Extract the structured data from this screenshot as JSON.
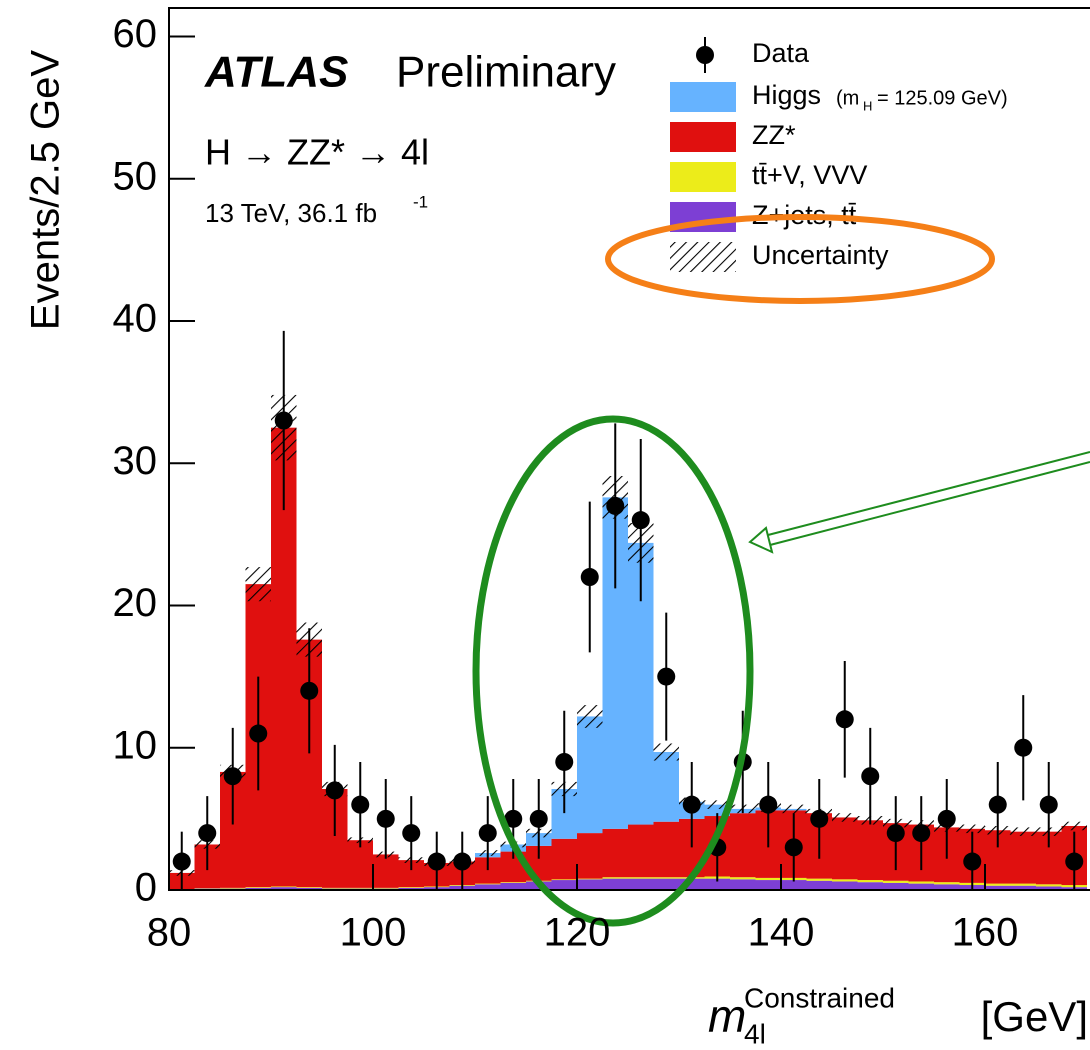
{
  "chart_data": {
    "type": "histogram",
    "experiment": "ATLAS",
    "status": "Preliminary",
    "process": "H → ZZ* → 4l",
    "energy_lumi": {
      "text": "13 TeV, 36.1 fb",
      "sup": "-1"
    },
    "y_label": "Events/2.5 GeV",
    "x_label": {
      "symbol": "m",
      "sub": "4l",
      "sup": "Constrained",
      "unit": "[GeV]"
    },
    "bins": [
      80,
      82.5,
      85,
      87.5,
      90,
      92.5,
      95,
      97.5,
      100,
      102.5,
      105,
      107.5,
      110,
      112.5,
      115,
      117.5,
      120,
      122.5,
      125,
      127.5,
      130,
      132.5,
      135,
      137.5,
      140,
      142.5,
      145,
      147.5,
      150,
      152.5,
      155,
      157.5,
      160,
      162.5,
      165,
      167.5,
      170
    ],
    "xlim": [
      80,
      170
    ],
    "ylim": [
      0,
      62
    ],
    "xticks": [
      80,
      100,
      120,
      140,
      160
    ],
    "yticks": [
      0,
      10,
      20,
      30,
      40,
      50,
      60
    ],
    "data": {
      "name": "Data",
      "color": "#000000",
      "values": [
        2,
        4,
        8,
        11,
        33,
        14,
        7,
        6,
        5,
        4,
        2,
        2,
        4,
        5,
        5,
        9,
        22,
        27,
        26,
        15,
        6,
        3,
        9,
        6,
        3,
        5,
        12,
        8,
        4,
        4,
        5,
        2,
        6,
        10,
        6,
        2
      ],
      "errors": [
        2.1,
        2.6,
        3.4,
        4.0,
        6.3,
        4.4,
        3.2,
        3.0,
        2.8,
        2.6,
        2.1,
        2.1,
        2.6,
        2.8,
        2.8,
        3.6,
        5.3,
        5.8,
        5.7,
        4.5,
        3.0,
        2.4,
        3.6,
        3.0,
        2.4,
        2.8,
        4.1,
        3.4,
        2.6,
        2.6,
        2.8,
        2.1,
        3.0,
        3.7,
        3.0,
        2.1
      ]
    },
    "series": [
      {
        "name": "Higgs",
        "color": "#66b3ff",
        "legend_note": {
          "open": "(m",
          "sub": "H",
          "rest": "= 125.09 GeV)"
        },
        "values": [
          0,
          0,
          0,
          0,
          0,
          0,
          0,
          0,
          0,
          0,
          0,
          0,
          0.3,
          0.5,
          0.9,
          3.5,
          8.2,
          23.3,
          19.8,
          4.9,
          1.2,
          0.8,
          0.3,
          0.2,
          0.1,
          0,
          0,
          0,
          0,
          0,
          0,
          0,
          0,
          0,
          0,
          0
        ]
      },
      {
        "name": "ZZ*",
        "color": "#e0100f",
        "values": [
          1.13,
          3.07,
          8.15,
          21.3,
          32.25,
          17.4,
          6.95,
          3.35,
          2.35,
          1.9,
          1.65,
          1.65,
          1.85,
          2.15,
          2.45,
          2.85,
          3.2,
          3.4,
          3.7,
          3.9,
          4.1,
          4.25,
          4.5,
          4.75,
          4.75,
          4.6,
          4.35,
          4.2,
          4.05,
          4.0,
          3.85,
          3.8,
          3.75,
          3.65,
          3.7,
          4.15
        ]
      },
      {
        "name": "tt̄+V, VVV",
        "color": "#ecec1a",
        "values": [
          0.02,
          0.03,
          0.05,
          0.05,
          0.05,
          0.05,
          0.05,
          0.05,
          0.05,
          0.05,
          0.05,
          0.05,
          0.05,
          0.05,
          0.05,
          0.05,
          0.05,
          0.1,
          0.1,
          0.1,
          0.1,
          0.15,
          0.15,
          0.15,
          0.15,
          0.15,
          0.15,
          0.15,
          0.15,
          0.15,
          0.15,
          0.15,
          0.15,
          0.15,
          0.15,
          0.15
        ]
      },
      {
        "name": "Z+jets, tt̄",
        "color": "#7d3fd4",
        "values": [
          0.05,
          0.1,
          0.1,
          0.15,
          0.2,
          0.15,
          0.1,
          0.1,
          0.1,
          0.15,
          0.2,
          0.3,
          0.4,
          0.5,
          0.6,
          0.7,
          0.75,
          0.8,
          0.8,
          0.8,
          0.8,
          0.8,
          0.75,
          0.7,
          0.7,
          0.65,
          0.6,
          0.55,
          0.5,
          0.45,
          0.4,
          0.35,
          0.3,
          0.3,
          0.25,
          0.2
        ]
      }
    ],
    "uncertainty": {
      "name": "Uncertainty",
      "values": [
        0.2,
        0.3,
        0.5,
        1.2,
        2.3,
        1.2,
        0.5,
        0.2,
        0.2,
        0.2,
        0.2,
        0.2,
        0.2,
        0.2,
        0.3,
        0.5,
        0.8,
        1.5,
        1.4,
        0.6,
        0.3,
        0.3,
        0.3,
        0.3,
        0.3,
        0.3,
        0.3,
        0.3,
        0.3,
        0.3,
        0.3,
        0.3,
        0.3,
        0.3,
        0.3,
        0.3
      ]
    }
  }
}
